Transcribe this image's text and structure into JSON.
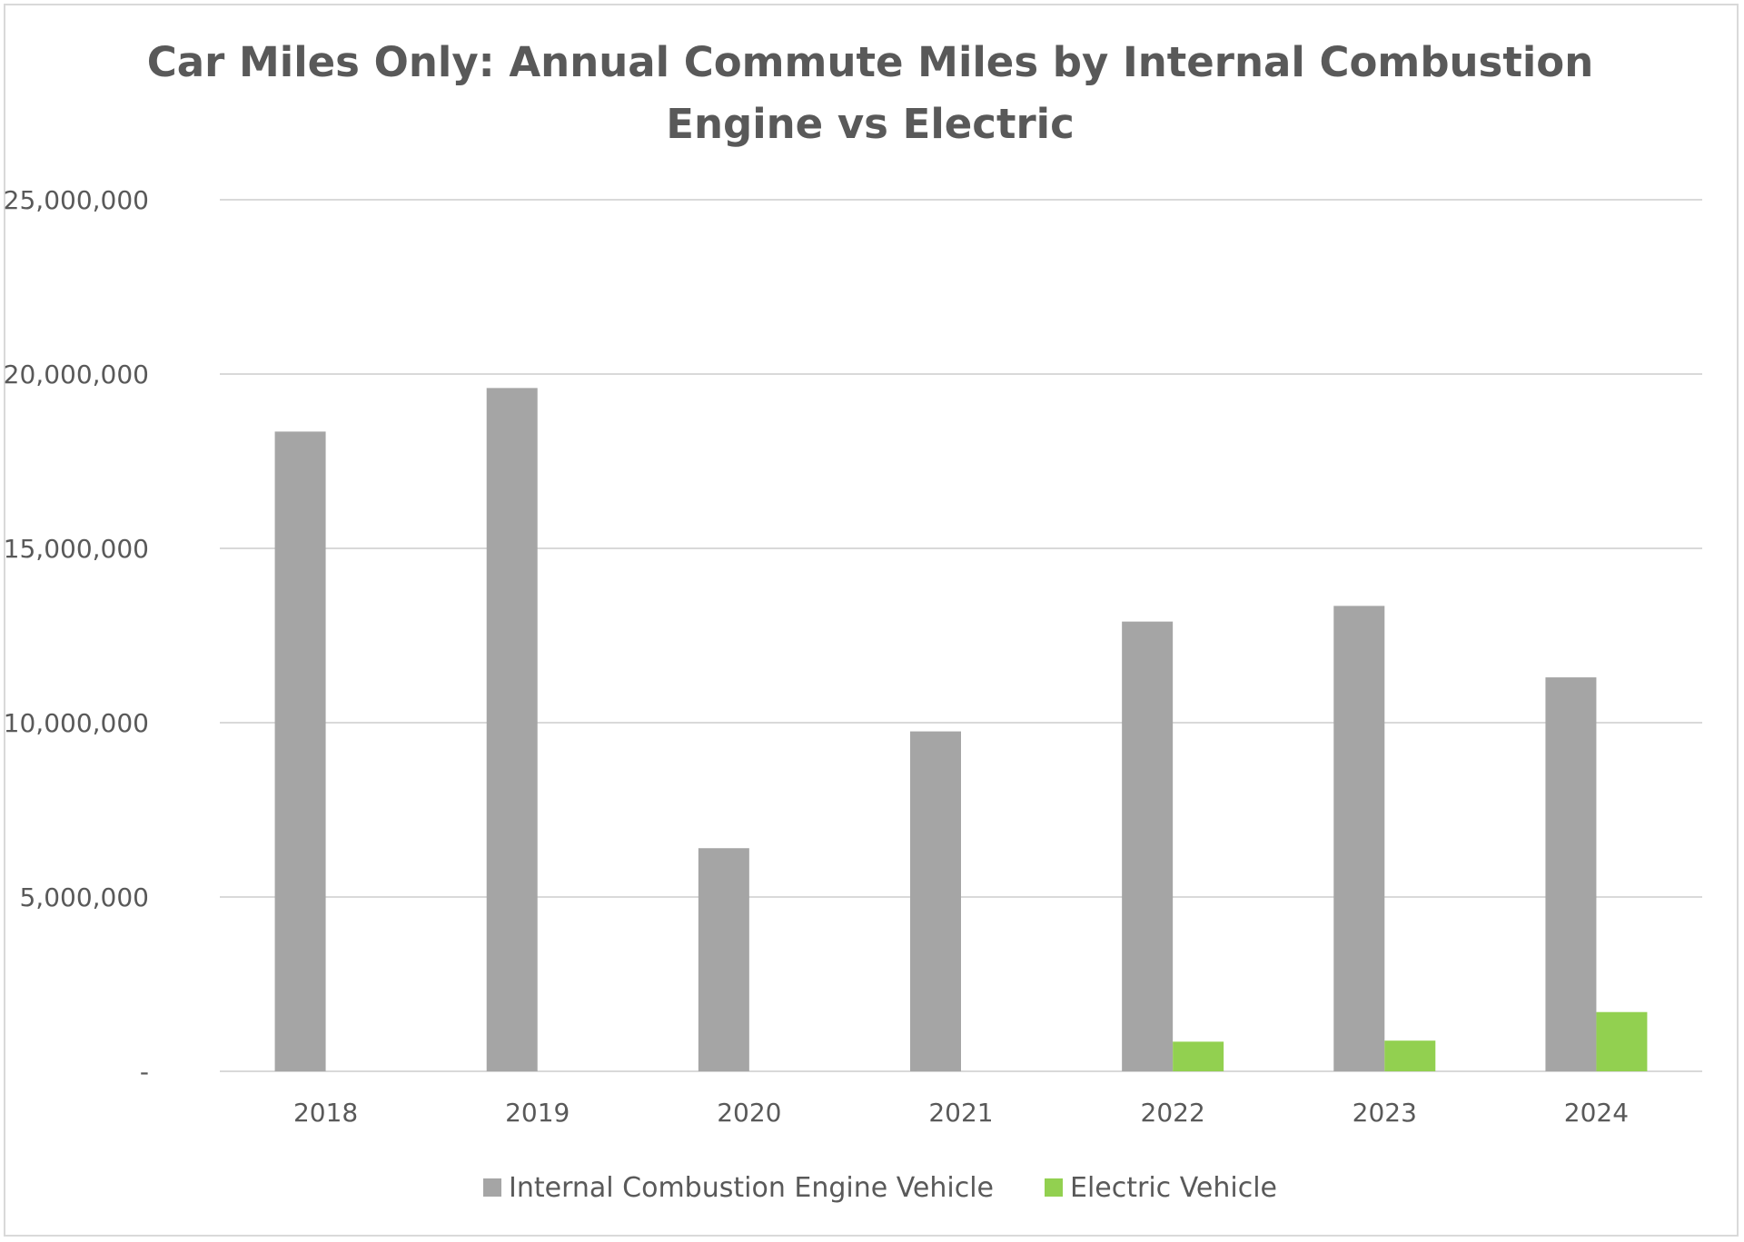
{
  "chart_data": {
    "type": "bar",
    "title_lines": [
      "Car Miles Only: Annual Commute Miles by Internal Combustion",
      "Engine vs Electric"
    ],
    "categories": [
      "2018",
      "2019",
      "2020",
      "2021",
      "2022",
      "2023",
      "2024"
    ],
    "series": [
      {
        "name": "Internal Combustion Engine Vehicle",
        "color": "#a5a5a5",
        "values": [
          18350000,
          19600000,
          6400000,
          9750000,
          12900000,
          13350000,
          11300000
        ]
      },
      {
        "name": "Electric Vehicle",
        "color": "#92d050",
        "values": [
          0,
          0,
          0,
          0,
          850000,
          880000,
          1700000
        ]
      }
    ],
    "ylim": [
      0,
      25000000
    ],
    "yticks": [
      0,
      5000000,
      10000000,
      15000000,
      20000000,
      25000000
    ],
    "ytick_labels": [
      "-",
      "5,000,000",
      "10,000,000",
      "15,000,000",
      "20,000,000",
      "25,000,000"
    ],
    "gridlines": true,
    "grid_color": "#d9d9d9",
    "text_color": "#595959",
    "legend_position": "bottom",
    "xlabel": "",
    "ylabel": ""
  }
}
